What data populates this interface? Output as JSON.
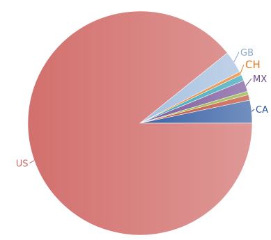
{
  "chart_data": {
    "type": "pie",
    "title": "",
    "slices": [
      {
        "label": "CA",
        "value": 3.3,
        "color": "#3b63a6"
      },
      {
        "label": "",
        "value": 0.8,
        "color": "#c1503d"
      },
      {
        "label": "",
        "value": 0.5,
        "color": "#8fb33a"
      },
      {
        "label": "MX",
        "value": 1.6,
        "color": "#7e5a9c"
      },
      {
        "label": "",
        "value": 0.9,
        "color": "#3aa6b9"
      },
      {
        "label": "CH",
        "value": 0.5,
        "color": "#e5822f"
      },
      {
        "label": "GB",
        "value": 3.2,
        "color": "#a7c0df"
      },
      {
        "label": "US",
        "value": 89.2,
        "color": "#d2706d"
      }
    ],
    "label_colors": {
      "CA": "#2e5593",
      "MX": "#6e4a8e",
      "CH": "#e07a1f",
      "GB": "#8fa6c8",
      "US": "#c56b68"
    }
  }
}
